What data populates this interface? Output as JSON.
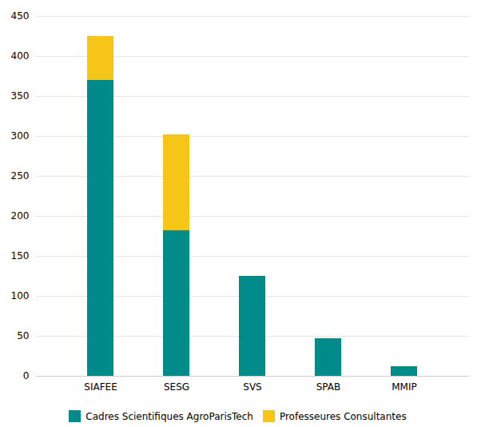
{
  "chart_data": {
    "type": "bar",
    "stacked": true,
    "categories": [
      "SIAFEE",
      "SESG",
      "SVS",
      "SPAB",
      "MMIP"
    ],
    "series": [
      {
        "name": "Cadres Scientifiques AgroParisTech",
        "color": "#008B8B",
        "values": [
          370,
          182,
          125,
          47,
          12
        ]
      },
      {
        "name": "Professeures Consultantes",
        "color": "#F5C518",
        "values": [
          55,
          120,
          0,
          0,
          0
        ]
      }
    ],
    "ylim": [
      0,
      450
    ],
    "yticks": [
      0,
      50,
      100,
      150,
      200,
      250,
      300,
      350,
      400,
      450
    ],
    "grid": true,
    "legend": "bottom"
  }
}
